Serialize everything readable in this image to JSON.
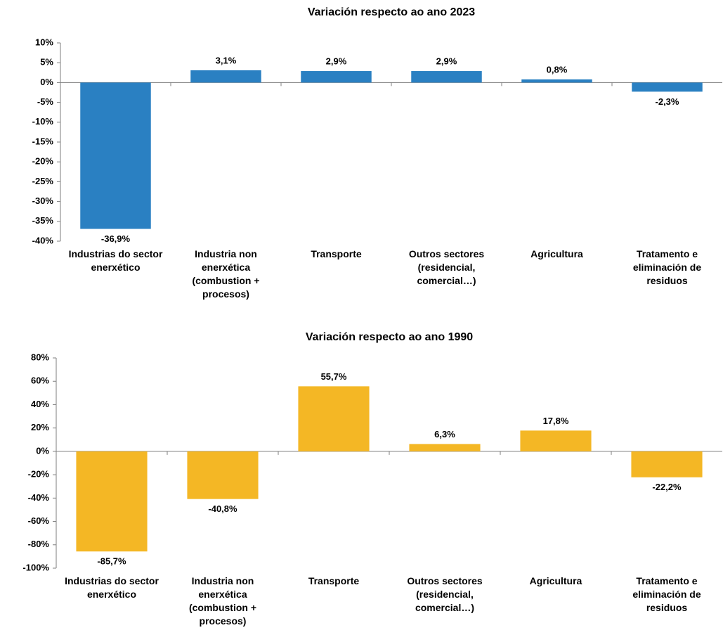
{
  "chart_data": [
    {
      "type": "bar",
      "title": "Variación respecto ao ano 2023",
      "categories": [
        "Industrias do sector enerxético",
        "Industria non enerxética (combustion + procesos)",
        "Transporte",
        "Outros sectores (residencial, comercial…)",
        "Agricultura",
        "Tratamento e eliminación de residuos"
      ],
      "values": [
        -36.9,
        3.1,
        2.9,
        2.9,
        0.8,
        -2.3
      ],
      "value_labels": [
        "-36,9%",
        "3,1%",
        "2,9%",
        "2,9%",
        "0,8%",
        "-2,3%"
      ],
      "color": "#2a80c2",
      "ylim": [
        -40,
        10
      ],
      "yticks": [
        {
          "value": -40,
          "label": "-40%"
        },
        {
          "value": -35,
          "label": "-35%"
        },
        {
          "value": -30,
          "label": "-30%"
        },
        {
          "value": -25,
          "label": "-25%"
        },
        {
          "value": -20,
          "label": "-20%"
        },
        {
          "value": -15,
          "label": "-15%"
        },
        {
          "value": -10,
          "label": "-10%"
        },
        {
          "value": -5,
          "label": "-5%"
        },
        {
          "value": 0,
          "label": "0%"
        },
        {
          "value": 5,
          "label": "5%"
        },
        {
          "value": 10,
          "label": "10%"
        }
      ],
      "grid": false
    },
    {
      "type": "bar",
      "title": "Variación respecto ao ano 1990",
      "categories": [
        "Industrias do sector enerxético",
        "Industria non enerxética (combustion + procesos)",
        "Transporte",
        "Outros sectores (residencial, comercial…)",
        "Agricultura",
        "Tratamento e eliminación de residuos"
      ],
      "values": [
        -85.7,
        -40.8,
        55.7,
        6.3,
        17.8,
        -22.2
      ],
      "value_labels": [
        "-85,7%",
        "-40,8%",
        "55,7%",
        "6,3%",
        "17,8%",
        "-22,2%"
      ],
      "color": "#f4b725",
      "ylim": [
        -100,
        80
      ],
      "yticks": [
        {
          "value": -100,
          "label": "-100%"
        },
        {
          "value": -80,
          "label": "-80%"
        },
        {
          "value": -60,
          "label": "-60%"
        },
        {
          "value": -40,
          "label": "-40%"
        },
        {
          "value": -20,
          "label": "-20%"
        },
        {
          "value": 0,
          "label": "0%"
        },
        {
          "value": 20,
          "label": "20%"
        },
        {
          "value": 40,
          "label": "40%"
        },
        {
          "value": 60,
          "label": "60%"
        },
        {
          "value": 80,
          "label": "80%"
        }
      ],
      "grid": false
    }
  ]
}
